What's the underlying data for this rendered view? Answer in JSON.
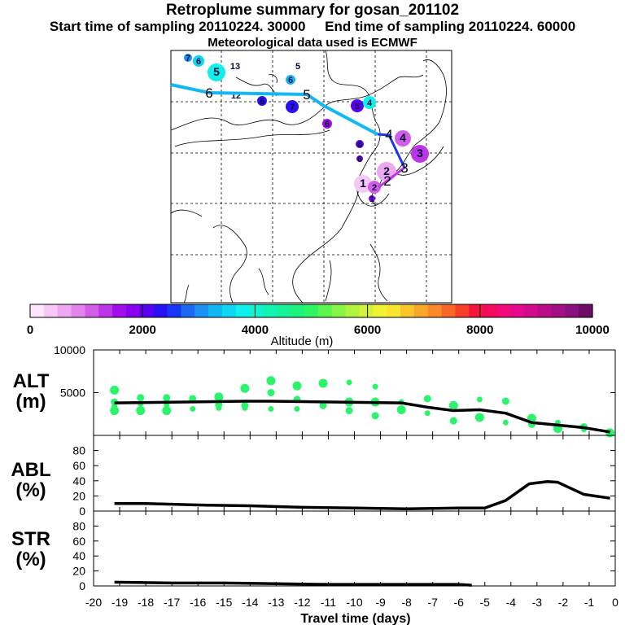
{
  "header": {
    "title": "Retroplume summary for gosan_201102",
    "start_label": "Start time of sampling 20110224. 30000",
    "end_label": "End time of sampling 20110224. 60000",
    "met_label": "Meteorological data used is ECMWF"
  },
  "colorbar": {
    "ticks": [
      "0",
      "2000",
      "4000",
      "6000",
      "8000",
      "10000"
    ],
    "title": "Altitude (m)",
    "range": [
      0,
      10000
    ],
    "colors": [
      "#fde6fc",
      "#f6c8f6",
      "#eea8f0",
      "#e184ec",
      "#d05ee8",
      "#bb36e6",
      "#a10ee6",
      "#8800f0",
      "#5a00f0",
      "#2a0ff5",
      "#1837f5",
      "#1c68f3",
      "#1a92f3",
      "#12b8f3",
      "#0ed6f3",
      "#0ef0ec",
      "#10f3cf",
      "#12f3b2",
      "#16f396",
      "#1cf37b",
      "#2ef563",
      "#5cf54e",
      "#89f545",
      "#b1f43f",
      "#d3f33a",
      "#eef336",
      "#f8e431",
      "#f9c52d",
      "#f9a72b",
      "#f9892a",
      "#f8662a",
      "#f73e2a",
      "#f5143a",
      "#f40a5a",
      "#f2097a",
      "#e6098a",
      "#d20b8a",
      "#bb0c88",
      "#a20d84",
      "#8a0f80",
      "#6c0c64"
    ]
  },
  "map": {
    "track": [
      {
        "label": "6",
        "role": "plume centroid day 6"
      },
      {
        "label": "5",
        "role": "plume centroid day 5"
      },
      {
        "label": "4",
        "role": "plume centroid day 4"
      },
      {
        "label": "3",
        "role": "plume centroid day 3"
      },
      {
        "label": "2",
        "role": "plume centroid day 2"
      }
    ],
    "clusters": [
      {
        "label": "7",
        "color": "#1a92f3"
      },
      {
        "label": "6",
        "color": "#0ed6f3"
      },
      {
        "label": "5",
        "color": "#0ef0ec"
      },
      {
        "label": "13",
        "color": "#10f3cf"
      },
      {
        "label": "5",
        "color": "#10f3cf"
      },
      {
        "label": "6",
        "color": "#12b8f3"
      },
      {
        "label": "12",
        "color": "#1c68f3"
      },
      {
        "label": "6",
        "color": "#2a0ff5"
      },
      {
        "label": "7",
        "color": "#2a0ff5"
      },
      {
        "label": "5",
        "color": "#5a00f0"
      },
      {
        "label": "4",
        "color": "#0ef0ec"
      },
      {
        "label": "6",
        "color": "#a10ee6"
      },
      {
        "label": "4",
        "color": "#d05ee8"
      },
      {
        "label": "3",
        "color": "#bb36e6"
      },
      {
        "label": "6",
        "color": "#5a00f0"
      },
      {
        "label": "6",
        "color": "#8800f0"
      },
      {
        "label": "2",
        "color": "#eea8f0"
      },
      {
        "label": "1",
        "color": "#f6c8f6"
      },
      {
        "label": "2",
        "color": "#d05ee8"
      },
      {
        "label": "1",
        "color": "#8800f0"
      }
    ]
  },
  "chart_data": [
    {
      "type": "scatter",
      "panel": "ALT",
      "ylabel": "ALT (m)",
      "xlabel": "Travel time (days)",
      "xlim": [
        -20,
        0
      ],
      "ylim": [
        0,
        10000
      ],
      "yticks": [
        "10000",
        "5000"
      ],
      "series": [
        {
          "name": "particle clusters",
          "x": [
            -19.2,
            -19.2,
            -19.2,
            -19.2,
            -18.2,
            -18.2,
            -18.2,
            -17.2,
            -17.2,
            -17.2,
            -16.2,
            -16.2,
            -15.2,
            -15.2,
            -15.2,
            -14.2,
            -14.2,
            -14.2,
            -13.2,
            -13.2,
            -13.2,
            -12.2,
            -12.2,
            -12.2,
            -11.2,
            -11.2,
            -10.2,
            -10.2,
            -10.2,
            -9.2,
            -9.2,
            -9.2,
            -8.2,
            -8.2,
            -7.2,
            -7.2,
            -6.2,
            -6.2,
            -5.2,
            -5.2,
            -4.2,
            -4.2,
            -3.2,
            -3.2,
            -2.2,
            -2.2,
            -1.2,
            -1.2,
            -0.2
          ],
          "y": [
            5300,
            3900,
            3400,
            2900,
            4400,
            3700,
            2900,
            4400,
            3600,
            2900,
            4300,
            3100,
            4500,
            3600,
            3200,
            5500,
            3500,
            3200,
            6400,
            5000,
            3100,
            5800,
            4200,
            3100,
            6100,
            3500,
            6200,
            3900,
            2900,
            5700,
            3900,
            2300,
            3900,
            3000,
            4300,
            2600,
            3500,
            1700,
            4200,
            2100,
            4000,
            1500,
            2000,
            1300,
            1500,
            800,
            1000,
            700,
            300
          ],
          "color": "#2af56a"
        },
        {
          "name": "mean altitude",
          "x": [
            -19.2,
            -14.2,
            -13.2,
            -8.2,
            -7.2,
            -6.2,
            -5.2,
            -4.2,
            -3.2,
            -2.2,
            -1.2,
            -0.2
          ],
          "y": [
            3800,
            4000,
            4000,
            3800,
            3300,
            2900,
            3000,
            2600,
            1500,
            1200,
            900,
            400
          ],
          "color": "#000000"
        }
      ]
    },
    {
      "type": "line",
      "panel": "ABL",
      "ylabel": "ABL (%)",
      "xlim": [
        -20,
        0
      ],
      "ylim": [
        0,
        100
      ],
      "yticks": [
        "80",
        "60",
        "40",
        "20",
        "0"
      ],
      "series": [
        {
          "name": "fraction in ABL",
          "x": [
            -19.2,
            -18,
            -16,
            -14,
            -12,
            -10,
            -8,
            -6,
            -5,
            -4.2,
            -3.3,
            -2.6,
            -2.2,
            -1.2,
            -0.2
          ],
          "y": [
            10,
            10,
            8,
            7,
            5,
            4,
            3,
            4,
            4,
            14,
            36,
            39,
            38,
            22,
            17
          ]
        }
      ]
    },
    {
      "type": "line",
      "panel": "STR",
      "ylabel": "STR (%)",
      "xlabel": "Travel time (days)",
      "xlim": [
        -20,
        0
      ],
      "ylim": [
        0,
        100
      ],
      "yticks": [
        "80",
        "60",
        "40",
        "20",
        "0"
      ],
      "xticks": [
        "-20",
        "-19",
        "-18",
        "-17",
        "-16",
        "-15",
        "-14",
        "-13",
        "-12",
        "-11",
        "-10",
        "-9",
        "-8",
        "-7",
        "-6",
        "-5",
        "-4",
        "-3",
        "-2",
        "-1",
        "0"
      ],
      "series": [
        {
          "name": "fraction in stratosphere",
          "x": [
            -19.2,
            -17,
            -15,
            -13,
            -11,
            -9,
            -7,
            -6,
            -5.5
          ],
          "y": [
            5,
            4,
            4,
            3,
            2,
            2,
            2,
            2,
            1
          ]
        }
      ]
    }
  ]
}
